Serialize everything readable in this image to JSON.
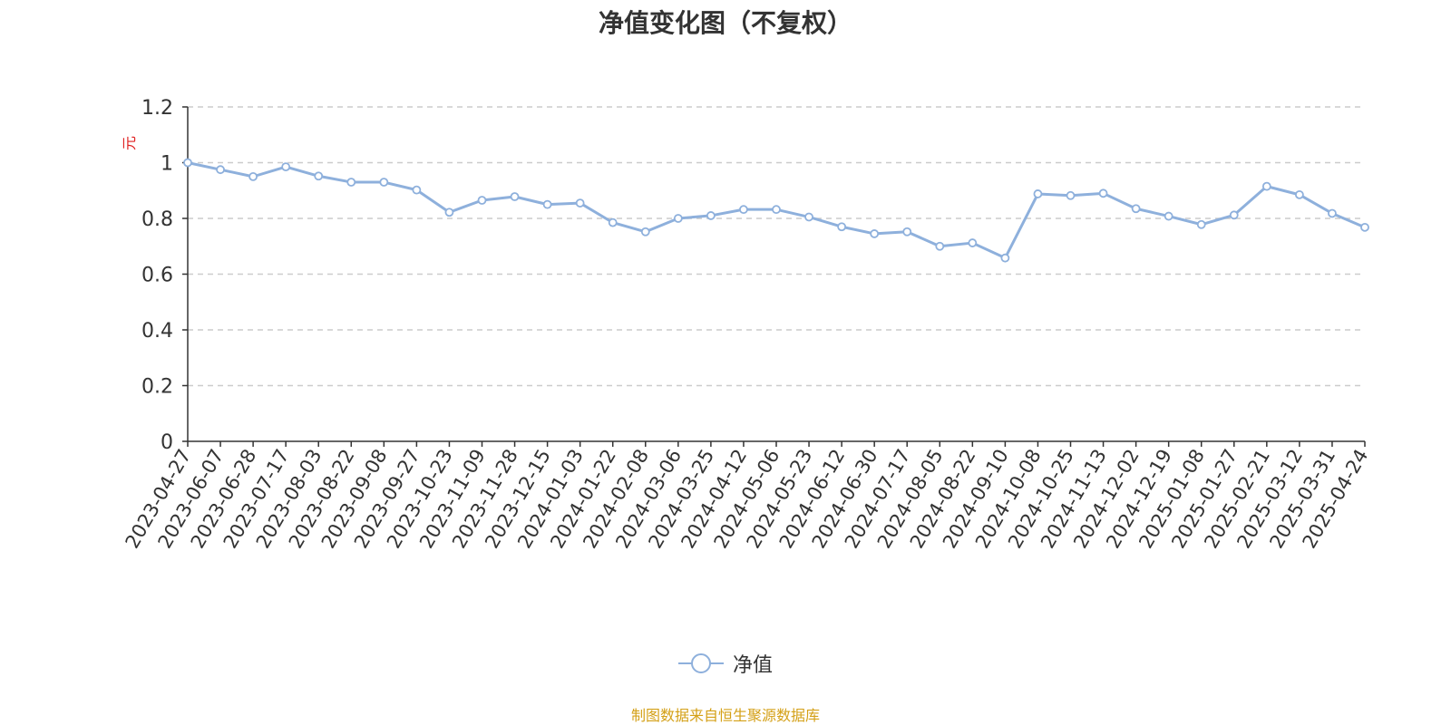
{
  "colors": {
    "line": "#8eb0dc",
    "title": "#333333",
    "axis": "#333333",
    "grid": "#cccccc",
    "unit": "#e02020",
    "source": "#d4a017"
  },
  "source_note": "制图数据来自恒生聚源数据库",
  "chart_data": {
    "type": "line",
    "title": "净值变化图（不复权）",
    "ylabel": "元",
    "ylim": [
      0,
      1.2
    ],
    "yticks": [
      0,
      0.2,
      0.4,
      0.6,
      0.8,
      1,
      1.2
    ],
    "ytick_labels": [
      "0",
      "0.2",
      "0.4",
      "0.6",
      "0.8",
      "1",
      "1.2"
    ],
    "grid": true,
    "legend_position": "bottom-center",
    "x_ticks": [
      "2023-04-27",
      "2023-06-07",
      "2023-06-28",
      "2023-07-17",
      "2023-08-03",
      "2023-08-22",
      "2023-09-08",
      "2023-09-27",
      "2023-10-23",
      "2023-11-09",
      "2023-11-28",
      "2023-12-15",
      "2024-01-03",
      "2024-01-22",
      "2024-02-08",
      "2024-03-06",
      "2024-03-25",
      "2024-04-12",
      "2024-05-06",
      "2024-05-23",
      "2024-06-12",
      "2024-06-30",
      "2024-07-17",
      "2024-08-05",
      "2024-08-22",
      "2024-09-10",
      "2024-10-08",
      "2024-10-25",
      "2024-11-13",
      "2024-12-02",
      "2024-12-19",
      "2025-01-08",
      "2025-01-27",
      "2025-02-21",
      "2025-03-12",
      "2025-03-31",
      "2025-04-24"
    ],
    "series": [
      {
        "name": "净值",
        "values": [
          1.0,
          0.975,
          0.95,
          0.985,
          0.952,
          0.93,
          0.93,
          0.902,
          0.822,
          0.865,
          0.878,
          0.85,
          0.855,
          0.785,
          0.752,
          0.8,
          0.81,
          0.832,
          0.832,
          0.805,
          0.77,
          0.745,
          0.752,
          0.7,
          0.712,
          0.658,
          0.888,
          0.882,
          0.89,
          0.835,
          0.808,
          0.778,
          0.812,
          0.915,
          0.885,
          0.818,
          0.768
        ]
      }
    ]
  }
}
